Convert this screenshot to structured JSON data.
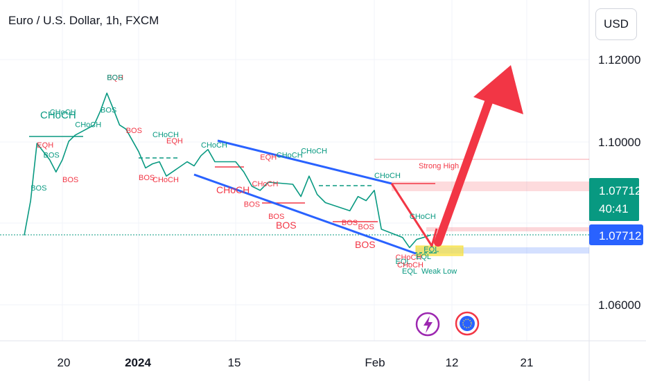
{
  "header": {
    "title": "Euro / U.S. Dollar, 1h, FXCM",
    "currency": "USD"
  },
  "price_box": {
    "price": "1.07712",
    "countdown": "40:41",
    "current": "1.07712"
  },
  "chart_data": {
    "type": "line",
    "title": "Euro / U.S. Dollar, 1h, FXCM",
    "y_ticks": [
      "1.12000",
      "1.10000",
      "1.06000"
    ],
    "x_ticks": [
      "20",
      "2024",
      "15",
      "Feb",
      "12",
      "21"
    ],
    "ylim": [
      1.0555,
      1.1235
    ],
    "current_price": 1.07712,
    "series": [
      {
        "x": [
          "Dec 14",
          "Dec 15",
          "Dec 16",
          "Dec 18",
          "Dec 19",
          "Dec 20",
          "Dec 21",
          "Dec 22",
          "Dec 25",
          "Dec 26",
          "Dec 27",
          "Dec 28",
          "Dec 29",
          "Dec 30",
          "Jan 1",
          "Jan 2",
          "Jan 3",
          "Jan 4",
          "Jan 5",
          "Jan 8",
          "Jan 9",
          "Jan 10",
          "Jan 11",
          "Jan 12",
          "Jan 15",
          "Jan 16",
          "Jan 17",
          "Jan 18",
          "Jan 19",
          "Jan 22",
          "Jan 23",
          "Jan 24",
          "Jan 25",
          "Jan 26",
          "Jan 29",
          "Jan 30",
          "Jan 31",
          "Feb 1",
          "Feb 2",
          "Feb 5",
          "Feb 6",
          "Feb 7",
          "Feb 8",
          "Feb 9"
        ],
        "values": [
          1.077,
          1.0855,
          1.0995,
          1.0955,
          1.0925,
          1.0955,
          1.1,
          1.1015,
          1.104,
          1.1075,
          1.1118,
          1.108,
          1.104,
          1.103,
          1.0975,
          1.0935,
          1.0945,
          1.095,
          1.0915,
          1.095,
          1.094,
          1.0965,
          1.098,
          1.095,
          1.095,
          1.0925,
          1.089,
          1.088,
          1.09,
          1.0895,
          1.0865,
          1.0915,
          1.087,
          1.085,
          1.083,
          1.0865,
          1.0855,
          1.088,
          1.0785,
          1.0765,
          1.074,
          1.076,
          1.0765,
          1.0771
        ]
      }
    ],
    "annotations": [
      {
        "text": "BOS",
        "color": "#089981",
        "x": "Dec 15",
        "y": 1.088
      },
      {
        "text": "CHoCH",
        "color": "#089981",
        "x": "Dec 18",
        "y": 1.1065
      },
      {
        "text": "EQH",
        "color": "#f23645",
        "x": "Dec 16",
        "y": 1.0985
      },
      {
        "text": "BOS",
        "color": "#089981",
        "x": "Dec 17",
        "y": 1.096
      },
      {
        "text": "BOS",
        "color": "#f23645",
        "x": "Dec 20",
        "y": 1.09
      },
      {
        "text": "CHoCH",
        "color": "#089981",
        "x": "Dec 22",
        "y": 1.1035
      },
      {
        "text": "BOS",
        "color": "#089981",
        "x": "Dec 26",
        "y": 1.107
      },
      {
        "text": "EQH",
        "color": "#f23645",
        "x": "Dec 27",
        "y": 1.115
      },
      {
        "text": "BOS",
        "color": "#089981",
        "x": "Dec 27",
        "y": 1.115
      },
      {
        "text": "BOS",
        "color": "#f23645",
        "x": "Dec 30",
        "y": 1.102
      },
      {
        "text": "CHoCH",
        "color": "#089981",
        "x": "Jan 3",
        "y": 1.101
      },
      {
        "text": "EQH",
        "color": "#f23645",
        "x": "Jan 5",
        "y": 1.0995
      },
      {
        "text": "BOS",
        "color": "#f23645",
        "x": "Jan 1",
        "y": 1.0905
      },
      {
        "text": "CHoCH",
        "color": "#f23645",
        "x": "Jan 3",
        "y": 1.09
      },
      {
        "text": "CHoCH",
        "color": "#089981",
        "x": "Jan 10",
        "y": 1.0985
      },
      {
        "text": "CHoCH",
        "color": "#f23645",
        "x": "Jan 17",
        "y": 1.089
      },
      {
        "text": "EQH",
        "color": "#f23645",
        "x": "Jan 18",
        "y": 1.0955
      },
      {
        "text": "CHoCH",
        "color": "#089981",
        "x": "Jan 20",
        "y": 1.096
      },
      {
        "text": "CHoCH",
        "color": "#089981",
        "x": "Jan 23",
        "y": 1.097
      },
      {
        "text": "BOS",
        "color": "#f23645",
        "x": "Jan 16",
        "y": 1.084
      },
      {
        "text": "BOS",
        "color": "#f23645",
        "x": "Jan 19",
        "y": 1.081
      },
      {
        "text": "CHoCH",
        "color": "#089981",
        "x": "Feb 1",
        "y": 1.091
      },
      {
        "text": "BOS",
        "color": "#f23645",
        "x": "Jan 28",
        "y": 1.0795
      },
      {
        "text": "BOS",
        "color": "#f23645",
        "x": "Jan 30",
        "y": 1.0785
      },
      {
        "text": "CHoCH",
        "color": "#089981",
        "x": "Feb 6",
        "y": 1.081
      },
      {
        "text": "CHoCH",
        "color": "#f23645",
        "x": "Feb 4",
        "y": 1.071
      },
      {
        "text": "EQL",
        "color": "#089981",
        "x": "Feb 8",
        "y": 1.073
      },
      {
        "text": "EQL",
        "color": "#089981",
        "x": "Feb 4",
        "y": 1.07
      },
      {
        "text": "Weak Low",
        "color": "#089981",
        "x": "Feb 9",
        "y": 1.07
      },
      {
        "text": "Strong High",
        "color": "#f23645",
        "x": "Feb 9",
        "y": 1.094
      }
    ]
  },
  "labels": {
    "choch_big": "CHoCH",
    "choch_mid": "CHoCH",
    "bos_mid": "BOS",
    "bos_mid2": "BOS",
    "strong_high": "Strong High",
    "weak_low": "Weak Low",
    "eql": "EQL",
    "eql2": "EQL",
    "choch_bottom": "CHoCH"
  },
  "icons": [
    "lightning-event-icon",
    "eu-flag-event-icon"
  ],
  "colors": {
    "up": "#089981",
    "down": "#f23645",
    "channel": "#2962ff",
    "arrow": "#f23645",
    "price_tag": "#2962ff",
    "strong_high_zone": "#f23645",
    "weak_low_zone": "#2962ff",
    "highlight": "#f7e03c"
  }
}
